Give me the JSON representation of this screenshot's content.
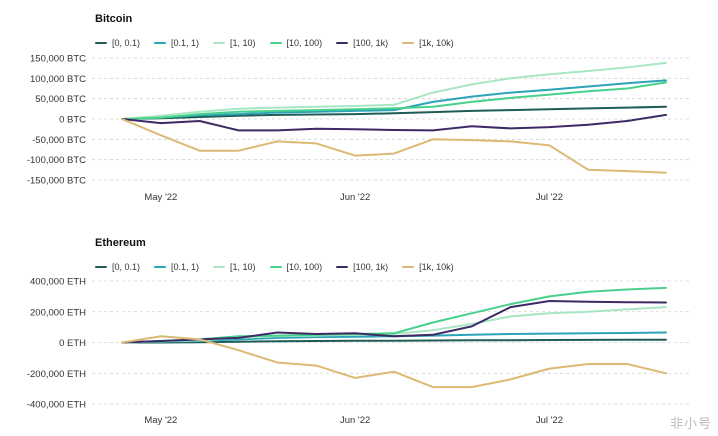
{
  "watermark": "非小号",
  "series_names": [
    "[0, 0.1)",
    "[0.1, 1)",
    "[1, 10)",
    "[10, 100)",
    "[100, 1k)",
    "[1k, 10k)"
  ],
  "series_colors": [
    "#1f5c55",
    "#2ba3b8",
    "#a8e6c4",
    "#47d18a",
    "#3d2a66",
    "#dcb974"
  ],
  "chart_data": [
    {
      "type": "line",
      "title": "Bitcoin",
      "x_tick_labels": [
        "May '22",
        "Jun '22",
        "Jul '22"
      ],
      "x_tick_index": [
        1,
        6,
        11
      ],
      "y_tick_values": [
        150000,
        100000,
        50000,
        0,
        -50000,
        -100000,
        -150000
      ],
      "y_tick_labels": [
        "150,000 BTC",
        "100,000 BTC",
        "50,000 BTC",
        "0 BTC",
        "-50,000 BTC",
        "-100,000 BTC",
        "-150,000 BTC"
      ],
      "ylim": [
        -150000,
        150000
      ],
      "grid": true,
      "legend": "top-left",
      "series": [
        {
          "name": "[0, 0.1)",
          "values": [
            0,
            2000,
            5000,
            8000,
            10000,
            11000,
            12000,
            14000,
            17000,
            20000,
            22000,
            24000,
            26000,
            28000,
            30000
          ]
        },
        {
          "name": "[0.1, 1)",
          "values": [
            0,
            4000,
            9000,
            12000,
            16000,
            18000,
            20000,
            22000,
            42000,
            55000,
            65000,
            72000,
            80000,
            88000,
            95000
          ]
        },
        {
          "name": "[1, 10)",
          "values": [
            0,
            8000,
            18000,
            25000,
            28000,
            30000,
            32000,
            35000,
            65000,
            85000,
            100000,
            110000,
            118000,
            127000,
            138000
          ]
        },
        {
          "name": "[10, 100)",
          "values": [
            0,
            3000,
            12000,
            18000,
            20000,
            22000,
            24000,
            26000,
            30000,
            42000,
            52000,
            60000,
            68000,
            75000,
            90000
          ]
        },
        {
          "name": "[100, 1k)",
          "values": [
            0,
            -10000,
            -5000,
            -28000,
            -28000,
            -24000,
            -25000,
            -27000,
            -28000,
            -18000,
            -23000,
            -20000,
            -14000,
            -5000,
            10000
          ]
        },
        {
          "name": "[1k, 10k)",
          "values": [
            0,
            -40000,
            -78000,
            -78000,
            -55000,
            -60000,
            -90000,
            -85000,
            -50000,
            -52000,
            -55000,
            -65000,
            -125000,
            -128000,
            -132000
          ]
        }
      ]
    },
    {
      "type": "line",
      "title": "Ethereum",
      "x_tick_labels": [
        "May '22",
        "Jun '22",
        "Jul '22"
      ],
      "x_tick_index": [
        1,
        6,
        11
      ],
      "y_tick_values": [
        400000,
        200000,
        0,
        -200000,
        -400000
      ],
      "y_tick_labels": [
        "400,000 ETH",
        "200,000 ETH",
        "0 ETH",
        "-200,000 ETH",
        "-400,000 ETH"
      ],
      "ylim": [
        -400000,
        400000
      ],
      "grid": true,
      "legend": "top-left",
      "series": [
        {
          "name": "[0, 0.1)",
          "values": [
            0,
            0,
            2000,
            5000,
            8000,
            10000,
            12000,
            12000,
            13000,
            14000,
            15000,
            16000,
            17000,
            18000,
            18000
          ]
        },
        {
          "name": "[0.1, 1)",
          "values": [
            0,
            5000,
            10000,
            20000,
            30000,
            35000,
            38000,
            40000,
            45000,
            50000,
            55000,
            58000,
            60000,
            62000,
            65000
          ]
        },
        {
          "name": "[1, 10)",
          "values": [
            0,
            8000,
            15000,
            30000,
            40000,
            45000,
            50000,
            55000,
            80000,
            120000,
            170000,
            190000,
            200000,
            215000,
            230000
          ]
        },
        {
          "name": "[10, 100)",
          "values": [
            0,
            10000,
            20000,
            40000,
            45000,
            50000,
            55000,
            60000,
            130000,
            190000,
            250000,
            300000,
            330000,
            345000,
            355000
          ]
        },
        {
          "name": "[100, 1k)",
          "values": [
            0,
            10000,
            20000,
            30000,
            65000,
            55000,
            60000,
            40000,
            50000,
            105000,
            230000,
            270000,
            265000,
            262000,
            260000
          ]
        },
        {
          "name": "[1k, 10k)",
          "values": [
            0,
            40000,
            20000,
            -50000,
            -130000,
            -150000,
            -230000,
            -190000,
            -290000,
            -290000,
            -240000,
            -170000,
            -140000,
            -140000,
            -200000
          ]
        }
      ]
    }
  ]
}
